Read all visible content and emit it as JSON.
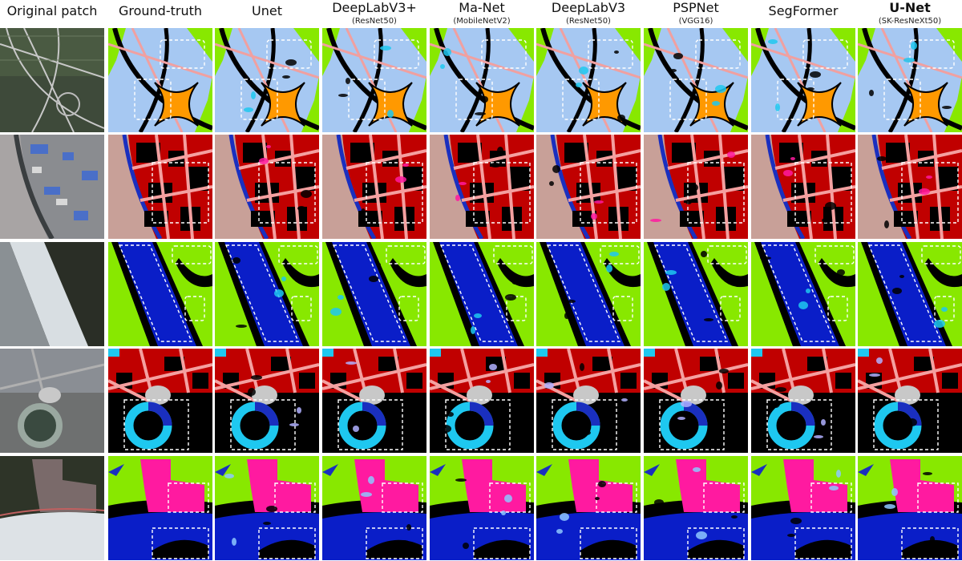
{
  "columns": [
    {
      "title": "Original patch"
    },
    {
      "title": "Ground-truth"
    },
    {
      "title": "Unet"
    },
    {
      "title": "DeepLabV3+",
      "subtitle": "(ResNet50)"
    },
    {
      "title": "Ma-Net",
      "subtitle": "(MobileNetV2)"
    },
    {
      "title": "DeepLabV3",
      "subtitle": "(ResNet50)"
    },
    {
      "title": "PSPNet",
      "subtitle": "(VGG16)"
    },
    {
      "title": "SegFormer"
    },
    {
      "title": "U-Net",
      "subtitle": "(SK-ResNeXt50)"
    }
  ]
}
